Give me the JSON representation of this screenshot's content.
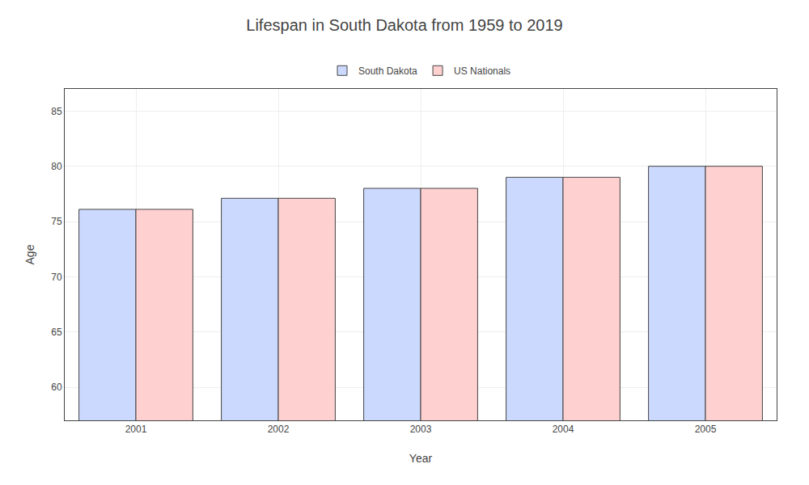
{
  "chart_data": {
    "type": "bar",
    "title": "Lifespan in South Dakota from 1959 to 2019",
    "x_label": "Year",
    "y_label": "Age",
    "categories": [
      "2001",
      "2002",
      "2003",
      "2004",
      "2005"
    ],
    "series": [
      {
        "name": "South Dakota",
        "color": "#ccd9ff",
        "values": [
          76.1,
          77.1,
          78.0,
          79.0,
          80.0
        ]
      },
      {
        "name": "US Nationals",
        "color": "#ffd0d0",
        "values": [
          76.1,
          77.1,
          78.0,
          79.0,
          80.0
        ]
      }
    ],
    "ylim": [
      57,
      87
    ],
    "yticks": [
      60,
      65,
      70,
      75,
      80,
      85
    ],
    "grid": true,
    "legend": "top"
  }
}
